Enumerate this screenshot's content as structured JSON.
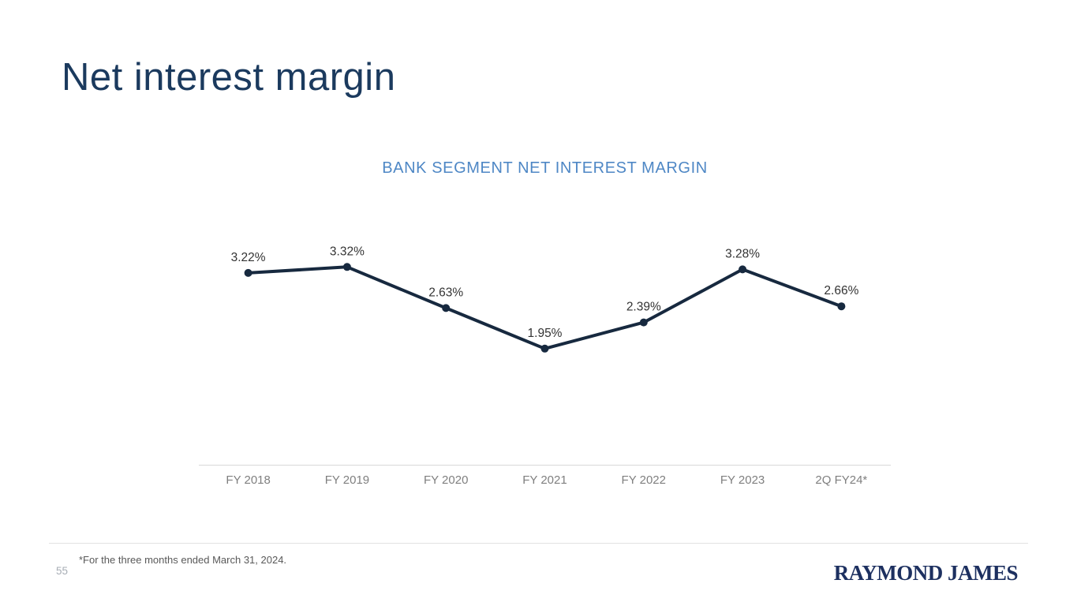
{
  "slide": {
    "title": "Net interest margin",
    "page_number": "55",
    "footnote": "*For the three months ended March 31, 2024.",
    "logo_text": "RAYMOND JAMES"
  },
  "chart_data": {
    "type": "line",
    "title": "BANK SEGMENT NET INTEREST MARGIN",
    "categories": [
      "FY 2018",
      "FY 2019",
      "FY 2020",
      "FY 2021",
      "FY 2022",
      "FY 2023",
      "2Q FY24*"
    ],
    "values": [
      3.22,
      3.32,
      2.63,
      1.95,
      2.39,
      3.28,
      2.66
    ],
    "data_labels": [
      "3.22%",
      "3.32%",
      "2.63%",
      "1.95%",
      "2.39%",
      "3.28%",
      "2.66%"
    ],
    "xlabel": "",
    "ylabel": "",
    "ylim": [
      0,
      4.1
    ],
    "grid": false,
    "legend": "none",
    "value_axis_visible": false,
    "data_label_position": "above",
    "marker": "circle"
  },
  "colors": {
    "background": "#ffffff",
    "title_navy": "#1b3a5e",
    "chart_title_blue": "#4e87c5",
    "line_navy": "#17293f",
    "data_label_dark": "#333333",
    "axis_label_gray": "#7f7f7f",
    "axis_line_gray": "#d9d9d9",
    "divider_gray": "#e3e3e3",
    "footnote_gray": "#595959",
    "page_number_gray": "#a7adb5",
    "logo_navy": "#1d3060"
  }
}
